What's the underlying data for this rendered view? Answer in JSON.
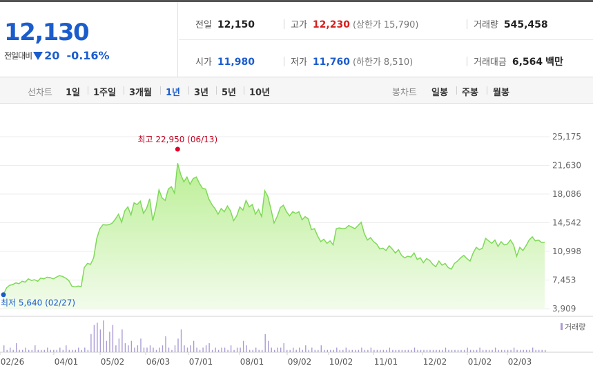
{
  "summary": {
    "price": "12,130",
    "change_label": "전일대비",
    "change_icon": "down-triangle-icon",
    "change_abs": "20",
    "change_pct": "-0.16%",
    "prev_close_label": "전일",
    "prev_close": "12,150",
    "high_label": "고가",
    "high": "12,230",
    "upper_limit_label": "(상한가",
    "upper_limit": "15,790)",
    "volume_label": "거래량",
    "volume": "545,458",
    "open_label": "시가",
    "open": "11,980",
    "low_label": "저가",
    "low": "11,760",
    "lower_limit_label": "(하한가",
    "lower_limit": "8,510)",
    "amount_label": "거래대금",
    "amount": "6,564",
    "amount_unit": "백만"
  },
  "tabs": {
    "line_label": "선차트",
    "line_periods": [
      "1일",
      "1주일",
      "3개월",
      "1년",
      "3년",
      "5년",
      "10년"
    ],
    "active_period": "1년",
    "candle_label": "봉차트",
    "candle_periods": [
      "일봉",
      "주봉",
      "월봉"
    ]
  },
  "colors": {
    "up": "#d61e1e",
    "down": "#1b5ccd",
    "line": "#7ed957",
    "fill_top": "#b7ee8f",
    "volume_bar": "#a99bd6"
  },
  "chart_data": {
    "type": "area",
    "x_ticks": [
      "02/26",
      "04/01",
      "05/02",
      "06/03",
      "07/01",
      "08/01",
      "09/02",
      "10/02",
      "11/01",
      "12/02",
      "01/02",
      "02/03"
    ],
    "y_ticks": [
      "25,175",
      "21,630",
      "18,086",
      "14,542",
      "10,998",
      "7,453",
      "3,909"
    ],
    "ylim": [
      3909,
      25175
    ],
    "legend": "거래량",
    "max_annotation": {
      "label": "최고 22,950 (06/13)",
      "value": 22950,
      "date": "06/13"
    },
    "min_annotation": {
      "label": "최저 5,640 (02/27)",
      "value": 5640,
      "date": "02/27"
    },
    "series": [
      {
        "values": [
          5640,
          6500,
          6800,
          6900,
          7100,
          7000,
          7300,
          7200,
          7600,
          7400,
          7500,
          7300,
          7700,
          7600,
          7800,
          7750,
          7600,
          7800,
          8000,
          7900,
          7700,
          7400,
          6700,
          6600,
          6700,
          6650,
          9000,
          9500,
          9400,
          10200,
          12600,
          13800,
          14300,
          14250,
          14300,
          14500,
          15000,
          15600,
          14600,
          16000,
          16500,
          15500,
          17000,
          16800,
          17200,
          15700,
          16300,
          17500,
          14800,
          16400,
          18600,
          17600,
          17300,
          18700,
          19000,
          18200,
          21900,
          20500,
          19600,
          20200,
          19300,
          20000,
          20200,
          19400,
          18800,
          18700,
          17500,
          16800,
          16300,
          15600,
          16300,
          15900,
          16600,
          16000,
          14800,
          15400,
          16500,
          16100,
          17300,
          16500,
          16800,
          15600,
          16200,
          15300,
          18500,
          17800,
          16200,
          14500,
          15300,
          16400,
          16700,
          15900,
          15400,
          15900,
          15700,
          15900,
          14900,
          15300,
          15000,
          13700,
          13800,
          12900,
          12200,
          12500,
          12000,
          12300,
          11800,
          13800,
          13900,
          13800,
          13850,
          14200,
          14000,
          13800,
          14200,
          14600,
          13200,
          12400,
          12700,
          12200,
          11900,
          11300,
          11400,
          11100,
          11700,
          11300,
          10800,
          11200,
          10500,
          10200,
          10400,
          10300,
          10800,
          10000,
          10200,
          9600,
          10100,
          9900,
          9400,
          9100,
          9800,
          9300,
          9500,
          9000,
          8800,
          9500,
          9800,
          10200,
          10500,
          10100,
          9800,
          10800,
          11500,
          11200,
          11400,
          12600,
          12300,
          12000,
          12400,
          11600,
          12200,
          11800,
          11900,
          12400,
          11800,
          10400,
          11500,
          11100,
          11700,
          12400,
          12800,
          12300,
          12400,
          12100,
          12130
        ]
      }
    ],
    "volume": [
      3,
      1,
      2,
      1,
      4,
      1,
      1,
      2,
      1,
      1,
      3,
      1,
      1,
      1,
      2,
      1,
      1,
      1,
      2,
      1,
      3,
      1,
      1,
      1,
      2,
      1,
      2,
      1,
      8,
      12,
      13,
      10,
      14,
      5,
      9,
      12,
      3,
      6,
      10,
      4,
      3,
      5,
      2,
      3,
      6,
      2,
      2,
      3,
      2,
      1,
      2,
      3,
      7,
      2,
      1,
      3,
      6,
      10,
      3,
      2,
      3,
      5,
      2,
      1,
      2,
      3,
      4,
      1,
      2,
      1,
      2,
      2,
      1,
      3,
      1,
      2,
      2,
      5,
      3,
      1,
      1,
      2,
      1,
      1,
      8,
      5,
      2,
      1,
      2,
      2,
      4,
      1,
      1,
      2,
      1,
      2,
      1,
      3,
      1,
      2,
      1,
      1,
      3,
      1,
      1,
      1,
      1,
      2,
      1,
      1,
      2,
      1,
      1,
      1,
      1,
      2,
      1,
      1,
      2,
      1,
      1,
      1,
      1,
      1,
      2,
      1,
      1,
      1,
      1,
      1,
      1,
      1,
      2,
      1,
      1,
      1,
      1,
      1,
      1,
      1,
      1,
      1,
      2,
      1,
      1,
      1,
      1,
      1,
      1,
      2,
      1,
      1,
      1,
      2,
      1,
      1,
      1,
      1,
      2,
      1,
      1,
      1,
      1,
      1,
      2,
      1,
      1,
      1,
      1,
      1,
      2,
      1,
      1,
      1,
      1
    ]
  }
}
